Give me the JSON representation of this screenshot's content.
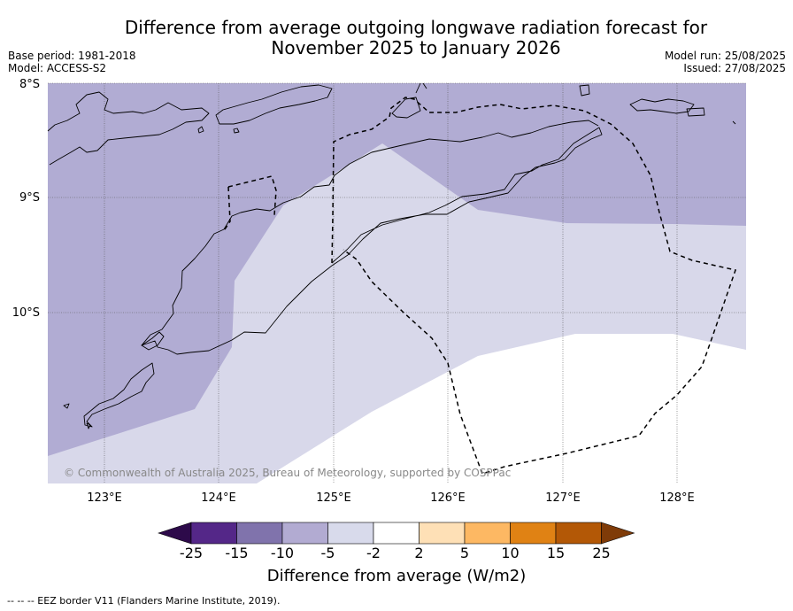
{
  "header": {
    "title_line1": "Difference from average outgoing longwave radiation forecast for",
    "title_line2": "November 2025 to January 2026",
    "base_period": "Base period: 1981-2018",
    "model": "Model: ACCESS-S2",
    "model_run": "Model run: 25/08/2025",
    "issued": "Issued: 27/08/2025"
  },
  "map": {
    "lat_labels": [
      "8°S",
      "9°S",
      "10°S"
    ],
    "lon_labels": [
      "123°E",
      "124°E",
      "125°E",
      "126°E",
      "127°E",
      "128°E"
    ],
    "copyright": "© Commonwealth of Australia 2025, Bureau of Meteorology, supported by COSPPac",
    "colors": {
      "band_-10_-5": "#b1acd3",
      "band_-5_-2": "#d8d8ea",
      "band_-2_2": "#ffffff"
    }
  },
  "colorbar": {
    "ticks": [
      "-25",
      "-15",
      "-10",
      "-5",
      "-2",
      "2",
      "5",
      "10",
      "15",
      "25"
    ],
    "colors": [
      "#2d0a4a",
      "#542788",
      "#8073ac",
      "#b2abd2",
      "#d8daeb",
      "#ffffff",
      "#fee0b6",
      "#fdb863",
      "#e08214",
      "#b35806",
      "#7f3b08"
    ],
    "label": "Difference from average (W/m2)"
  },
  "footer": {
    "legend": "-- -- -- EEZ border V11 (Flanders Marine Institute, 2019)."
  }
}
